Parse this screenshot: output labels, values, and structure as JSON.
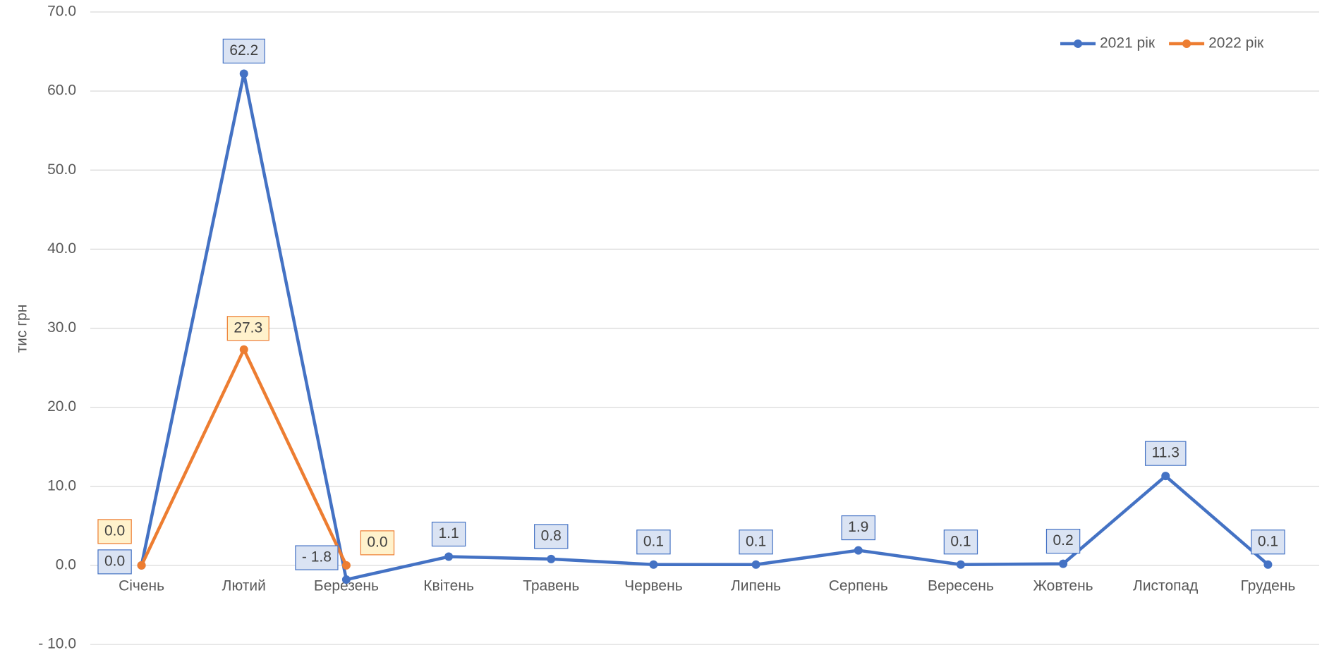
{
  "chart_data": {
    "type": "line",
    "y_label": "тис грн",
    "categories": [
      "Січень",
      "Лютий",
      "Березень",
      "Квітень",
      "Травень",
      "Червень",
      "Липень",
      "Серпень",
      "Вересень",
      "Жовтень",
      "Листопад",
      "Грудень"
    ],
    "series": [
      {
        "name": "2021 рік",
        "color": "#4472c4",
        "values": [
          0,
          62.2,
          -1.8,
          1.1,
          0.8,
          0.1,
          0.1,
          1.9,
          0.1,
          0.2,
          11.3,
          0.1
        ],
        "value_labels": [
          "0.0",
          "62.2",
          "- 1.8",
          "1.1",
          "0.8",
          "0.1",
          "0.1",
          "1.9",
          "0.1",
          "0.2",
          "11.3",
          "0.1"
        ]
      },
      {
        "name": "2022 рік",
        "color": "#ed7d31",
        "values": [
          0,
          27.3,
          0,
          null,
          null,
          null,
          null,
          null,
          null,
          null,
          null,
          null
        ],
        "value_labels": [
          "0.0",
          "27.3",
          "0.0",
          null,
          null,
          null,
          null,
          null,
          null,
          null,
          null,
          null
        ]
      }
    ],
    "ylim": [
      -10,
      70
    ],
    "yticks": [
      {
        "value": -10,
        "label": "- 10.0"
      },
      {
        "value": 0,
        "label": "0.0"
      },
      {
        "value": 10,
        "label": "10.0"
      },
      {
        "value": 20,
        "label": "20.0"
      },
      {
        "value": 30,
        "label": "30.0"
      },
      {
        "value": 40,
        "label": "40.0"
      },
      {
        "value": 50,
        "label": "50.0"
      },
      {
        "value": 60,
        "label": "60.0"
      },
      {
        "value": 70,
        "label": "70.0"
      }
    ],
    "grid": true,
    "legend": "top-right"
  }
}
